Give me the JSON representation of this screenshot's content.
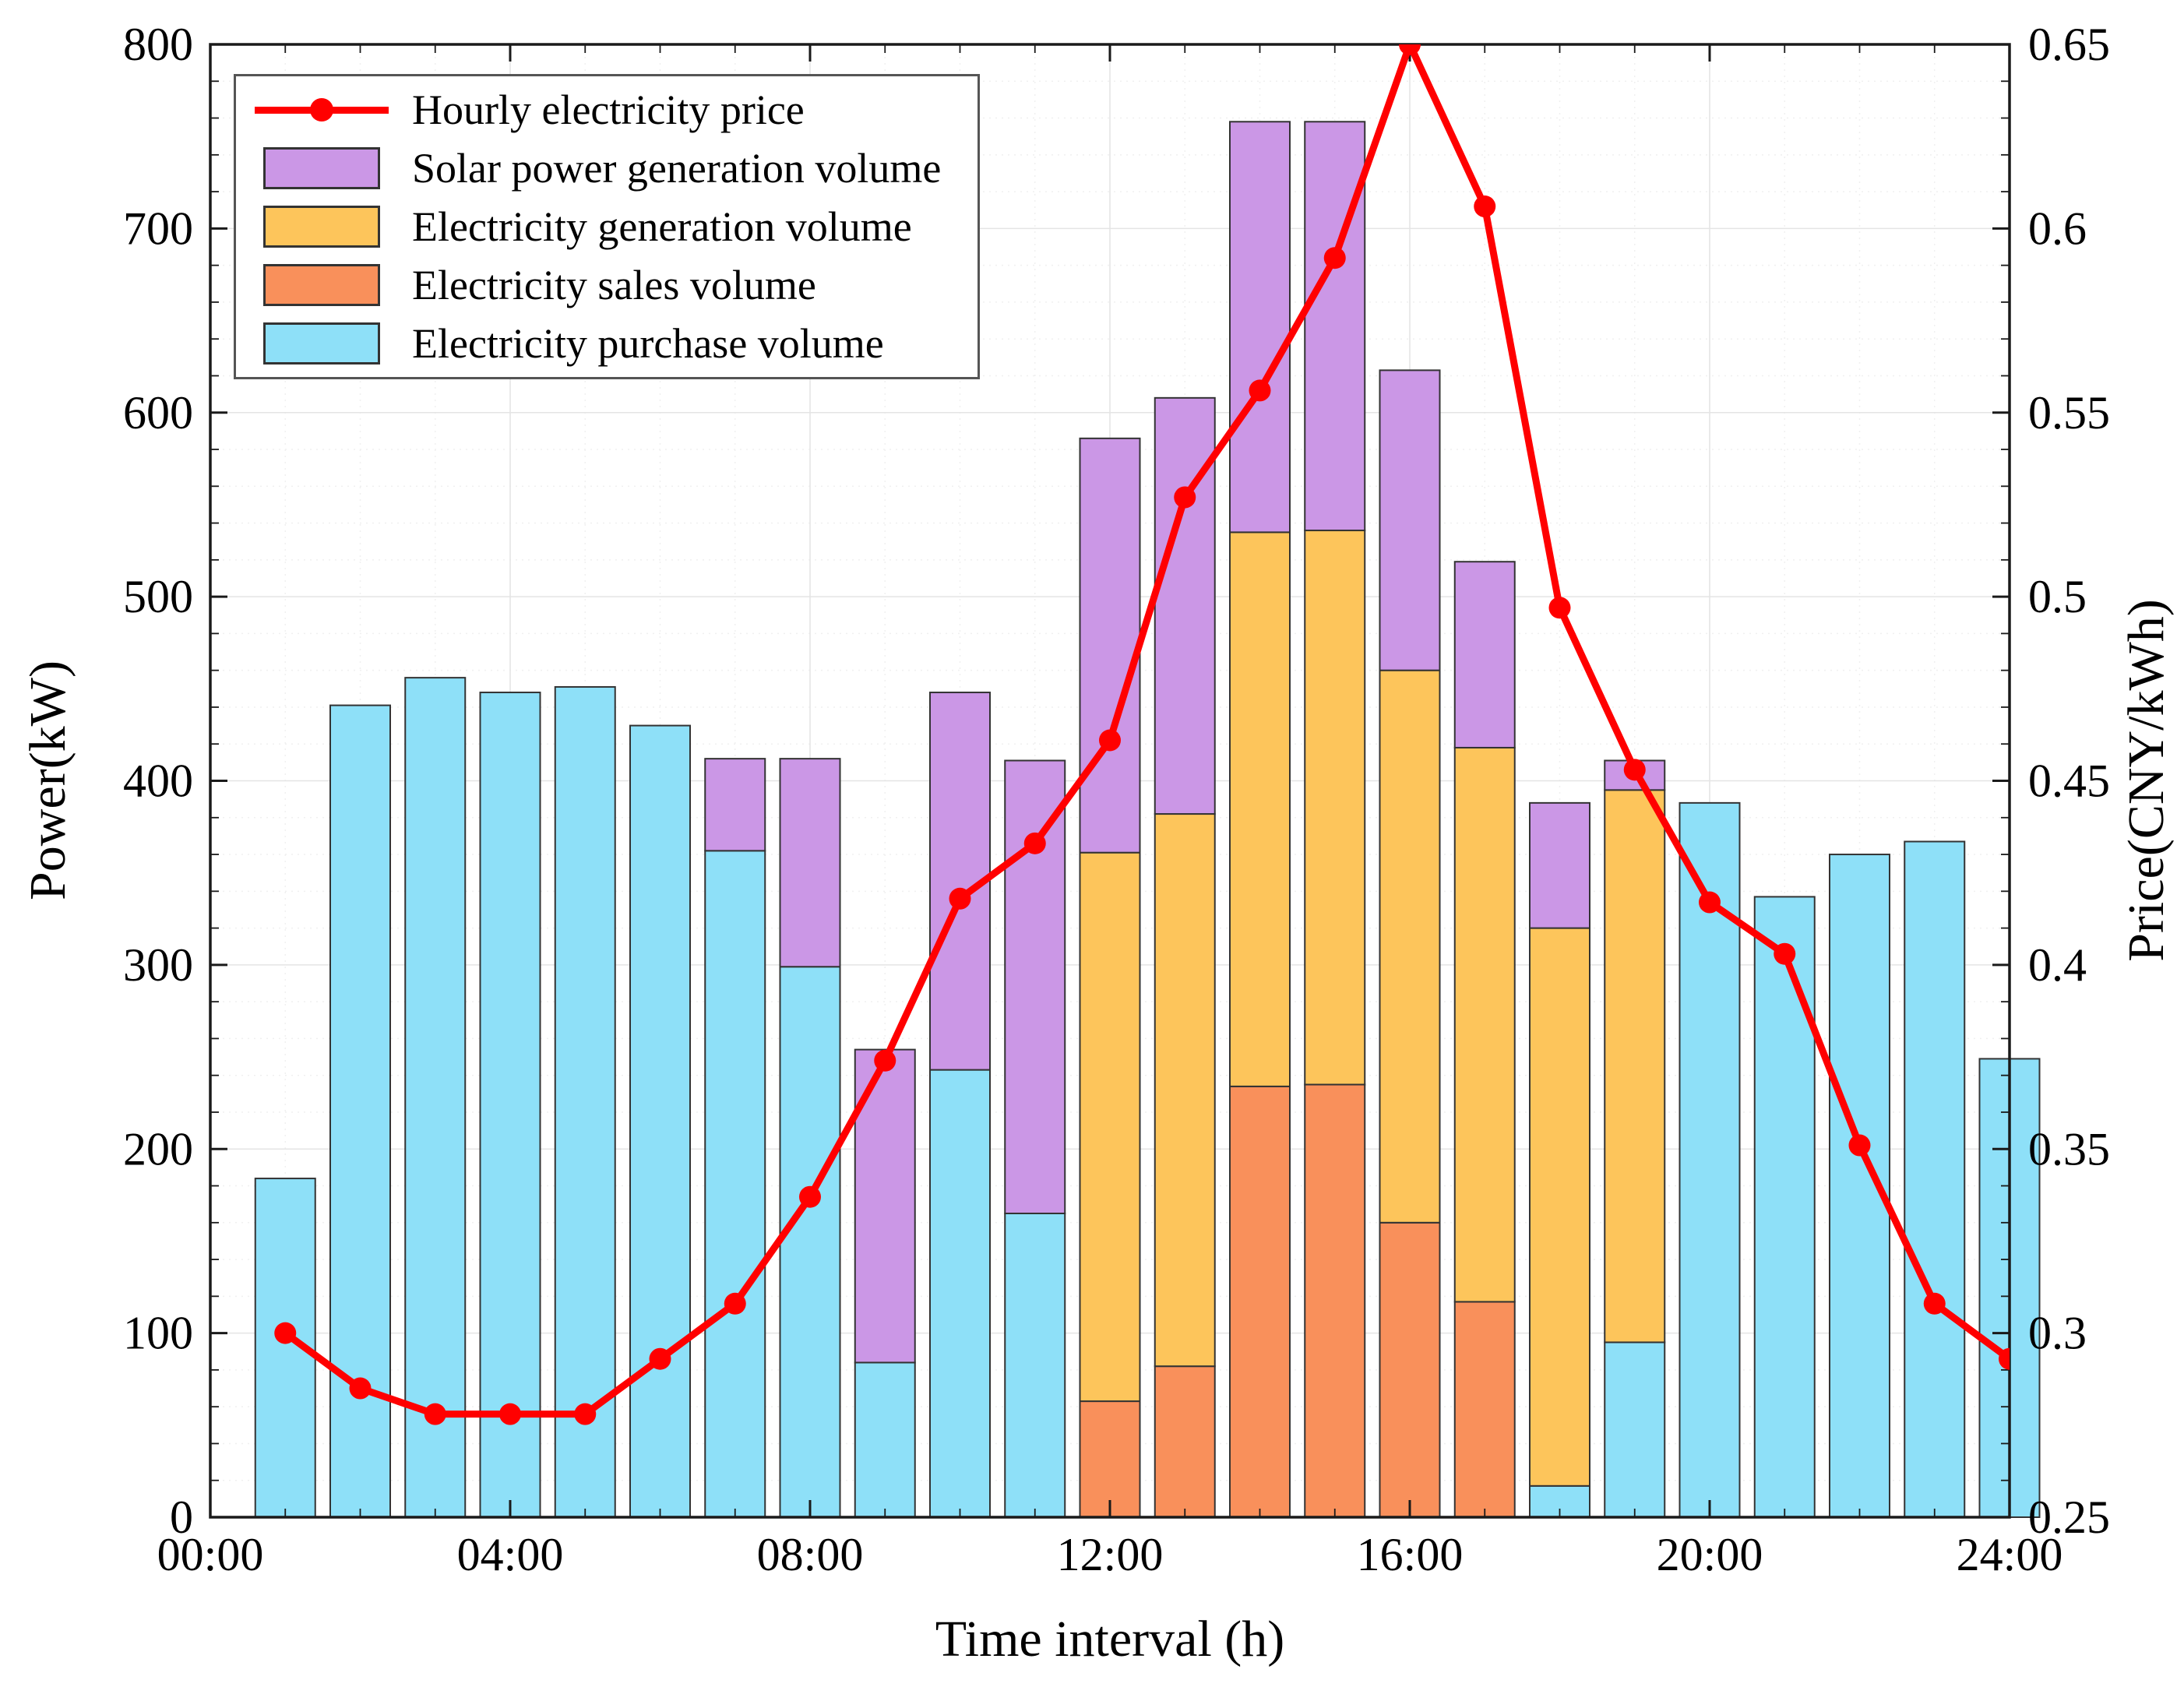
{
  "figure": {
    "xlabel": "Time interval (h)",
    "ylabel_left": "Power(kW)",
    "ylabel_right": "Price(CNY/kWh)"
  },
  "chart_data": {
    "type": "bar+line",
    "stacked": true,
    "grid": "major-solid-light, minor-dotted",
    "legend_position": "upper-left",
    "x_hours": [
      1,
      2,
      3,
      4,
      5,
      6,
      7,
      8,
      9,
      10,
      11,
      12,
      13,
      14,
      15,
      16,
      17,
      18,
      19,
      20,
      21,
      22,
      23,
      24
    ],
    "x_axis": {
      "min": 0,
      "max": 24,
      "tick_values": [
        0,
        4,
        8,
        12,
        16,
        20,
        24
      ],
      "tick_labels": [
        "00:00",
        "04:00",
        "08:00",
        "12:00",
        "16:00",
        "20:00",
        "24:00"
      ]
    },
    "left_axis": {
      "label": "Power(kW)",
      "min": 0,
      "max": 800,
      "tick_step": 100,
      "tick_labels": [
        "0",
        "100",
        "200",
        "300",
        "400",
        "500",
        "600",
        "700",
        "800"
      ]
    },
    "right_axis": {
      "label": "Price(CNY/kWh)",
      "min": 0.25,
      "max": 0.65,
      "tick_step": 0.05,
      "tick_labels": [
        "0.25",
        "0.3",
        "0.35",
        "0.4",
        "0.45",
        "0.5",
        "0.55",
        "0.6",
        "0.65"
      ]
    },
    "bar_series": [
      {
        "name": "Electricity purchase volume",
        "color": "#8EE0F8",
        "values": [
          184,
          441,
          456,
          448,
          451,
          430,
          362,
          299,
          84,
          243,
          165,
          0,
          0,
          0,
          0,
          0,
          0,
          17,
          95,
          388,
          337,
          360,
          367,
          249
        ]
      },
      {
        "name": "Electricity sales volume",
        "color": "#F9905B",
        "values": [
          0,
          0,
          0,
          0,
          0,
          0,
          0,
          0,
          0,
          0,
          0,
          63,
          82,
          234,
          235,
          160,
          117,
          0,
          0,
          0,
          0,
          0,
          0,
          0
        ]
      },
      {
        "name": "Electricity generation volume",
        "color": "#FDC55B",
        "values": [
          0,
          0,
          0,
          0,
          0,
          0,
          0,
          0,
          0,
          0,
          0,
          298,
          300,
          301,
          301,
          300,
          301,
          303,
          300,
          0,
          0,
          0,
          0,
          0
        ]
      },
      {
        "name": "Solar power generation volume",
        "color": "#CB97E6",
        "values": [
          0,
          0,
          0,
          0,
          0,
          0,
          50,
          113,
          170,
          205,
          246,
          225,
          226,
          223,
          222,
          163,
          101,
          68,
          16,
          0,
          0,
          0,
          0,
          0
        ]
      }
    ],
    "line_series": {
      "name": "Hourly electricity price",
      "color": "#FF0000",
      "values": [
        0.3,
        0.285,
        0.278,
        0.278,
        0.278,
        0.293,
        0.308,
        0.337,
        0.374,
        0.418,
        0.433,
        0.461,
        0.527,
        0.556,
        0.592,
        0.65,
        0.606,
        0.497,
        0.453,
        0.417,
        0.403,
        0.351,
        0.308,
        0.293
      ]
    },
    "legend": [
      {
        "label": "Hourly electricity price",
        "swatch": "line",
        "color": "#FF0000"
      },
      {
        "label": "Solar power generation volume",
        "swatch": "patch",
        "color": "#CB97E6"
      },
      {
        "label": "Electricity generation volume",
        "swatch": "patch",
        "color": "#FDC55B"
      },
      {
        "label": "Electricity sales volume",
        "swatch": "patch",
        "color": "#F9905B"
      },
      {
        "label": "Electricity purchase volume",
        "swatch": "patch",
        "color": "#8EE0F8"
      }
    ],
    "style": {
      "bar_edge": "#333333",
      "spine": "#1a1a1a",
      "grid_major": "#e4e4e4",
      "grid_minor": "#f0f0f0"
    }
  }
}
